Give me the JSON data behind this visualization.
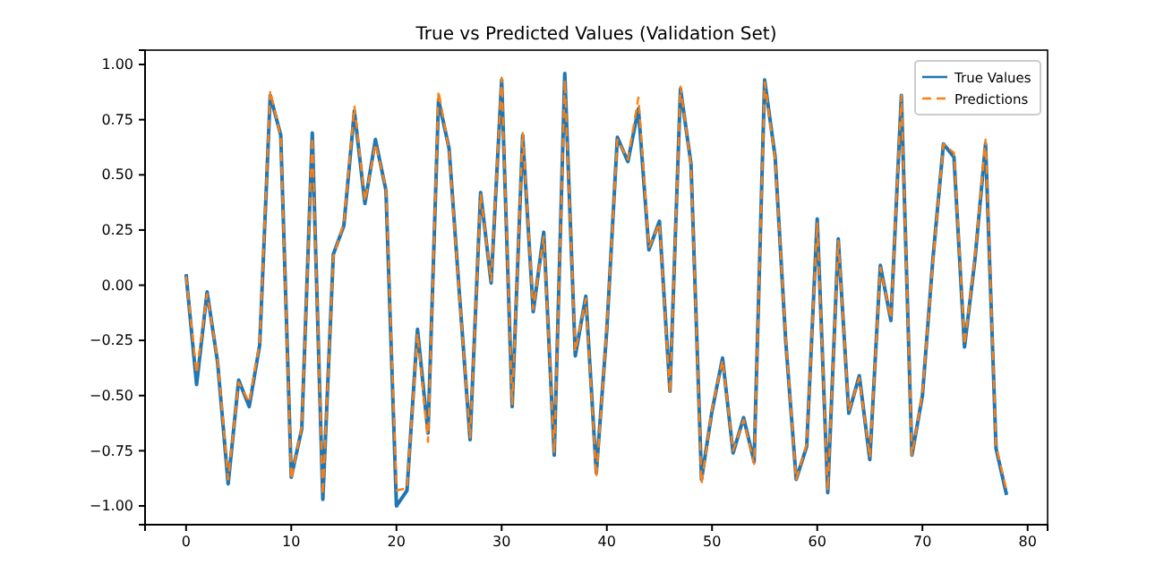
{
  "chart_data": {
    "type": "line",
    "title": "True vs Predicted Values (Validation Set)",
    "x": [
      0,
      1,
      2,
      3,
      4,
      5,
      6,
      7,
      8,
      9,
      10,
      11,
      12,
      13,
      14,
      15,
      16,
      17,
      18,
      19,
      20,
      21,
      22,
      23,
      24,
      25,
      26,
      27,
      28,
      29,
      30,
      31,
      32,
      33,
      34,
      35,
      36,
      37,
      38,
      39,
      40,
      41,
      42,
      43,
      44,
      45,
      46,
      47,
      48,
      49,
      50,
      51,
      52,
      53,
      54,
      55,
      56,
      57,
      58,
      59,
      60,
      61,
      62,
      63,
      64,
      65,
      66,
      67,
      68,
      69,
      70,
      71,
      72,
      73,
      74,
      75,
      76,
      77,
      78
    ],
    "series": [
      {
        "name": "True Values",
        "color": "#1f77b4",
        "line_style": "solid",
        "values": [
          0.05,
          -0.45,
          -0.03,
          -0.35,
          -0.9,
          -0.43,
          -0.55,
          -0.27,
          0.86,
          0.68,
          -0.87,
          -0.65,
          0.69,
          -0.97,
          0.14,
          0.27,
          0.79,
          0.37,
          0.66,
          0.43,
          -1.0,
          -0.93,
          -0.2,
          -0.67,
          0.84,
          0.62,
          -0.05,
          -0.7,
          0.42,
          0.01,
          0.93,
          -0.55,
          0.68,
          -0.12,
          0.24,
          -0.77,
          0.96,
          -0.32,
          -0.05,
          -0.85,
          -0.2,
          0.67,
          0.56,
          0.8,
          0.16,
          0.29,
          -0.48,
          0.89,
          0.55,
          -0.88,
          -0.57,
          -0.33,
          -0.76,
          -0.6,
          -0.8,
          0.93,
          0.58,
          -0.25,
          -0.88,
          -0.73,
          0.3,
          -0.94,
          0.21,
          -0.58,
          -0.41,
          -0.79,
          0.09,
          -0.16,
          0.86,
          -0.77,
          -0.5,
          0.12,
          0.64,
          0.58,
          -0.28,
          0.12,
          0.64,
          -0.74,
          -0.95
        ]
      },
      {
        "name": "Predictions",
        "color": "#ff7f0e",
        "line_style": "dashed",
        "values": [
          0.04,
          -0.4,
          -0.04,
          -0.34,
          -0.88,
          -0.44,
          -0.53,
          -0.26,
          0.88,
          0.67,
          -0.88,
          -0.64,
          0.67,
          -0.95,
          0.13,
          0.28,
          0.81,
          0.38,
          0.64,
          0.44,
          -0.93,
          -0.92,
          -0.22,
          -0.71,
          0.88,
          0.61,
          -0.06,
          -0.69,
          0.41,
          0.02,
          0.94,
          -0.54,
          0.69,
          -0.11,
          0.22,
          -0.76,
          0.93,
          -0.3,
          -0.06,
          -0.87,
          -0.19,
          0.66,
          0.57,
          0.85,
          0.17,
          0.28,
          -0.49,
          0.9,
          0.54,
          -0.9,
          -0.56,
          -0.34,
          -0.75,
          -0.61,
          -0.81,
          0.92,
          0.57,
          -0.24,
          -0.88,
          -0.72,
          0.28,
          -0.93,
          0.2,
          -0.57,
          -0.42,
          -0.78,
          0.08,
          -0.15,
          0.86,
          -0.77,
          -0.49,
          0.11,
          0.64,
          0.6,
          -0.27,
          0.13,
          0.66,
          -0.73,
          -0.93
        ]
      }
    ],
    "xlim": [
      -3.9,
      81.9
    ],
    "ylim": [
      -1.085,
      1.065
    ],
    "xticks": [
      0,
      10,
      20,
      30,
      40,
      50,
      60,
      70,
      80
    ],
    "yticks": [
      {
        "value": -1,
        "label": "−1.00"
      },
      {
        "value": -0.75,
        "label": "−0.75"
      },
      {
        "value": -0.5,
        "label": "−0.50"
      },
      {
        "value": -0.25,
        "label": "−0.25"
      },
      {
        "value": 0,
        "label": "0.00"
      },
      {
        "value": 0.25,
        "label": "0.25"
      },
      {
        "value": 0.5,
        "label": "0.50"
      },
      {
        "value": 0.75,
        "label": "0.75"
      },
      {
        "value": 1,
        "label": "1.00"
      }
    ],
    "legend": "top right",
    "grid": false
  }
}
